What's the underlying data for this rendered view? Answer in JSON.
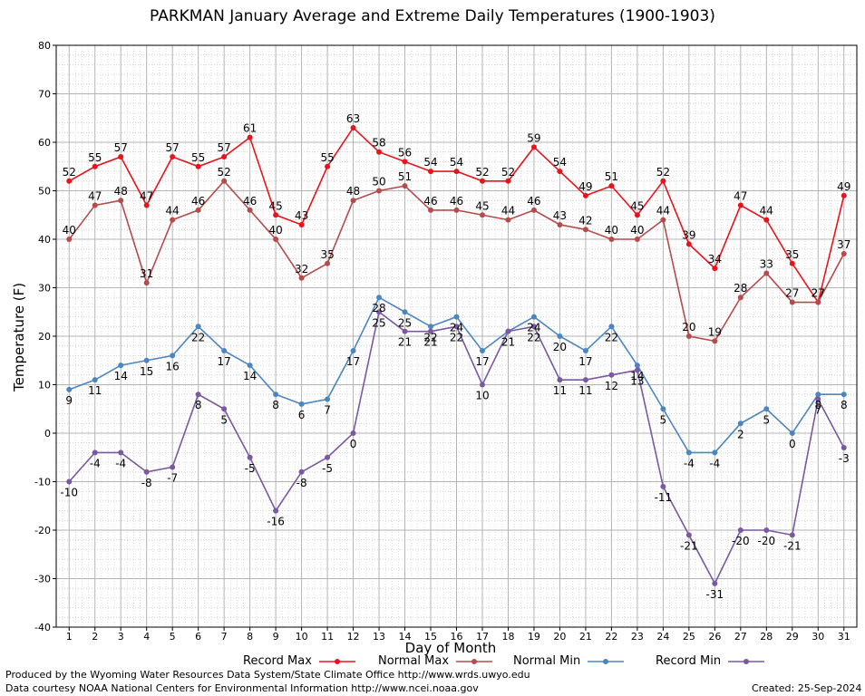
{
  "chart_data": {
    "type": "line",
    "title": "PARKMAN January Average and Extreme Daily Temperatures (1900-1903)",
    "xlabel": "Day of Month",
    "ylabel": "Temperature (F)",
    "ylim": [
      -40,
      80
    ],
    "yticks": [
      -40,
      -30,
      -20,
      -10,
      0,
      10,
      20,
      30,
      40,
      50,
      60,
      70,
      80
    ],
    "x": [
      1,
      2,
      3,
      4,
      5,
      6,
      7,
      8,
      9,
      10,
      11,
      12,
      13,
      14,
      15,
      16,
      17,
      18,
      19,
      20,
      21,
      22,
      23,
      24,
      25,
      26,
      27,
      28,
      29,
      30,
      31
    ],
    "grid": true,
    "legend_position": "bottom",
    "series": [
      {
        "name": "Record Max",
        "color": "#e8141c",
        "values": [
          52,
          55,
          57,
          47,
          57,
          55,
          57,
          61,
          45,
          43,
          55,
          63,
          58,
          56,
          54,
          54,
          52,
          52,
          59,
          54,
          49,
          51,
          45,
          52,
          39,
          34,
          47,
          44,
          35,
          27,
          49
        ]
      },
      {
        "name": "Normal Max",
        "color": "#b54b4b",
        "values": [
          40,
          47,
          48,
          31,
          44,
          46,
          52,
          46,
          40,
          32,
          35,
          48,
          50,
          51,
          46,
          46,
          45,
          44,
          46,
          43,
          42,
          40,
          40,
          44,
          20,
          19,
          28,
          33,
          27,
          27,
          37
        ]
      },
      {
        "name": "Normal Min",
        "color": "#4b86c1",
        "values": [
          9,
          11,
          14,
          15,
          16,
          22,
          17,
          14,
          8,
          6,
          7,
          17,
          28,
          25,
          22,
          24,
          17,
          21,
          24,
          20,
          17,
          22,
          14,
          5,
          -4,
          -4,
          2,
          5,
          0,
          8,
          8
        ]
      },
      {
        "name": "Record Min",
        "color": "#7a58a2",
        "values": [
          -10,
          -4,
          -4,
          -8,
          -7,
          8,
          5,
          -5,
          -16,
          -8,
          -5,
          0,
          25,
          21,
          21,
          22,
          10,
          21,
          22,
          11,
          11,
          12,
          13,
          -11,
          -21,
          -31,
          -20,
          -20,
          -21,
          7,
          -3
        ]
      }
    ]
  },
  "footer": {
    "line1": "Produced by the Wyoming Water Resources Data System/State Climate Office http://www.wrds.uwyo.edu",
    "line2": "Data courtesy NOAA National Centers for Environmental Information http://www.ncei.noaa.gov",
    "created": "Created:  25-Sep-2024"
  }
}
